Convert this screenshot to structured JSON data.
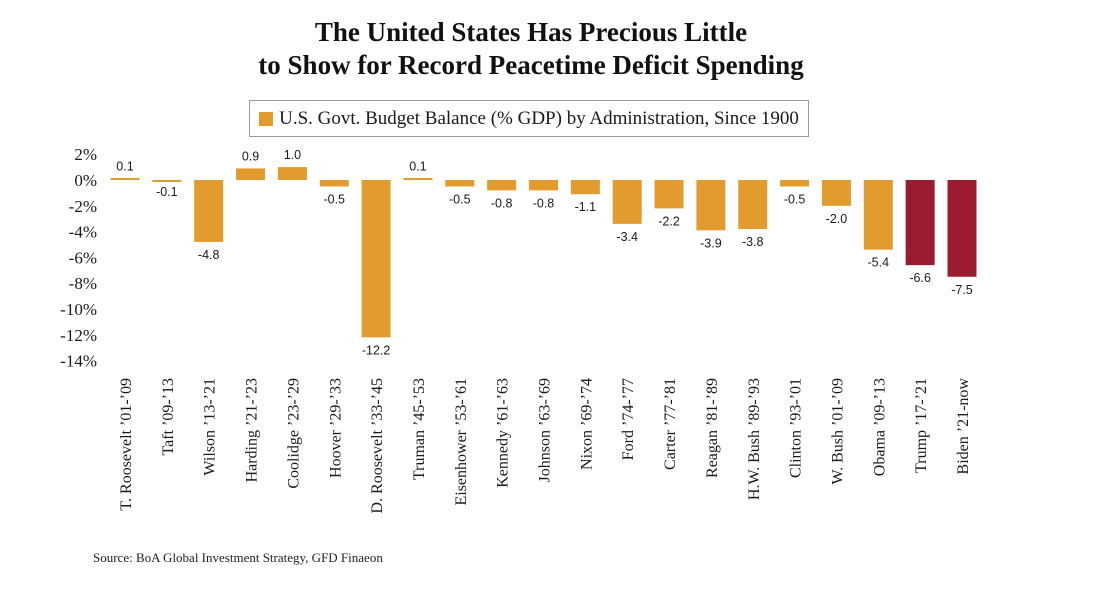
{
  "title_line1": "The United States Has Precious Little",
  "title_line2": "to Show for Record Peacetime Deficit Spending",
  "source": "Source: BoA Global Investment Strategy, GFD Finaeon",
  "chart_data": {
    "type": "bar",
    "title": "The United States Has Precious Little to Show for Record Peacetime Deficit Spending",
    "legend": "U.S. Govt. Budget Balance (% GDP) by Administration, Since 1900",
    "legend_position": "top-center",
    "ylim": [
      -14,
      2
    ],
    "yticks": [
      "2%",
      "0%",
      "-2%",
      "-4%",
      "-6%",
      "-8%",
      "-10%",
      "-12%",
      "-14%"
    ],
    "grid": false,
    "colors": {
      "default": "#E29B2E",
      "highlight": "#9B1C31"
    },
    "categories": [
      "T. Roosevelt ’01-’09",
      "Taft ’09-’13",
      "Wilson ’13-’21",
      "Harding ’21-’23",
      "Coolidge ’23-’29",
      "Hoover ’29-’33",
      "D. Roosevelt ’33-’45",
      "Truman ’45-’53",
      "Eisenhower ’53-’61",
      "Kennedy ’61-’63",
      "Johnson ’63-’69",
      "Nixon ’69-’74",
      "Ford ’74-’77",
      "Carter ’77-’81",
      "Reagan ’81-’89",
      "H.W. Bush ’89-’93",
      "Clinton ’93-’01",
      "W. Bush ’01-’09",
      "Obama ’09-’13",
      "Trump ’17-’21",
      "Biden ’21-now"
    ],
    "values": [
      0.1,
      -0.1,
      -4.8,
      0.9,
      1.0,
      -0.5,
      -12.2,
      0.1,
      -0.5,
      -0.8,
      -0.8,
      -1.1,
      -3.4,
      -2.2,
      -3.9,
      -3.8,
      -0.5,
      -2.0,
      -5.4,
      -6.6,
      -7.5
    ],
    "value_labels": [
      "0.1",
      "-0.1",
      "-4.8",
      "0.9",
      "1.0",
      "-0.5",
      "-12.2",
      "0.1",
      "-0.5",
      "-0.8",
      "-0.8",
      "-1.1",
      "-3.4",
      "-2.2",
      "-3.9",
      "-3.8",
      "-0.5",
      "-2.0",
      "-5.4",
      "-6.6",
      "-7.5"
    ],
    "highlighted": [
      false,
      false,
      false,
      false,
      false,
      false,
      false,
      false,
      false,
      false,
      false,
      false,
      false,
      false,
      false,
      false,
      false,
      false,
      false,
      true,
      true
    ]
  }
}
